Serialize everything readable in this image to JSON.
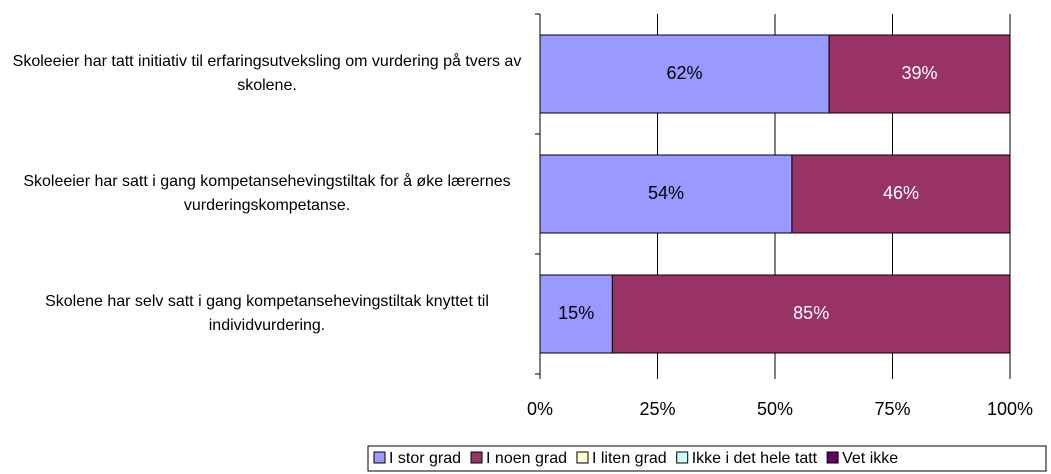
{
  "chart_data": {
    "type": "stacked-barh",
    "categories": [
      "Skoleeier har tatt initiativ til erfaringsutveksling om vurdering på tvers av skolene.",
      "Skoleeier har satt i gang kompetansehevingstiltak for å øke lærernes vurderingskompetanse.",
      "Skolene har selv satt i gang kompetansehevingstiltak knyttet til individvurdering."
    ],
    "series": [
      {
        "name": "I stor grad",
        "color": "#9999ff",
        "values": [
          61.5,
          53.6,
          15.4
        ],
        "value_labels": [
          "62%",
          "54%",
          "15%"
        ]
      },
      {
        "name": "I noen grad",
        "color": "#993366",
        "values": [
          38.5,
          46.4,
          84.6
        ],
        "value_labels": [
          "39%",
          "46%",
          "85%"
        ]
      },
      {
        "name": "I liten grad",
        "color": "#ffffcc",
        "values": [
          0,
          0,
          0
        ]
      },
      {
        "name": "Ikke i det hele tatt",
        "color": "#ccffff",
        "values": [
          0,
          0,
          0
        ]
      },
      {
        "name": "Vet ikke",
        "color": "#660066",
        "values": [
          0,
          0,
          0
        ]
      }
    ],
    "xlim": [
      0,
      100
    ],
    "xticks": [
      {
        "value": 0,
        "label": "0%"
      },
      {
        "value": 25,
        "label": "25%"
      },
      {
        "value": 50,
        "label": "50%"
      },
      {
        "value": 75,
        "label": "75%"
      },
      {
        "value": 100,
        "label": "100%"
      }
    ],
    "grid": true,
    "legend": "bottom"
  }
}
